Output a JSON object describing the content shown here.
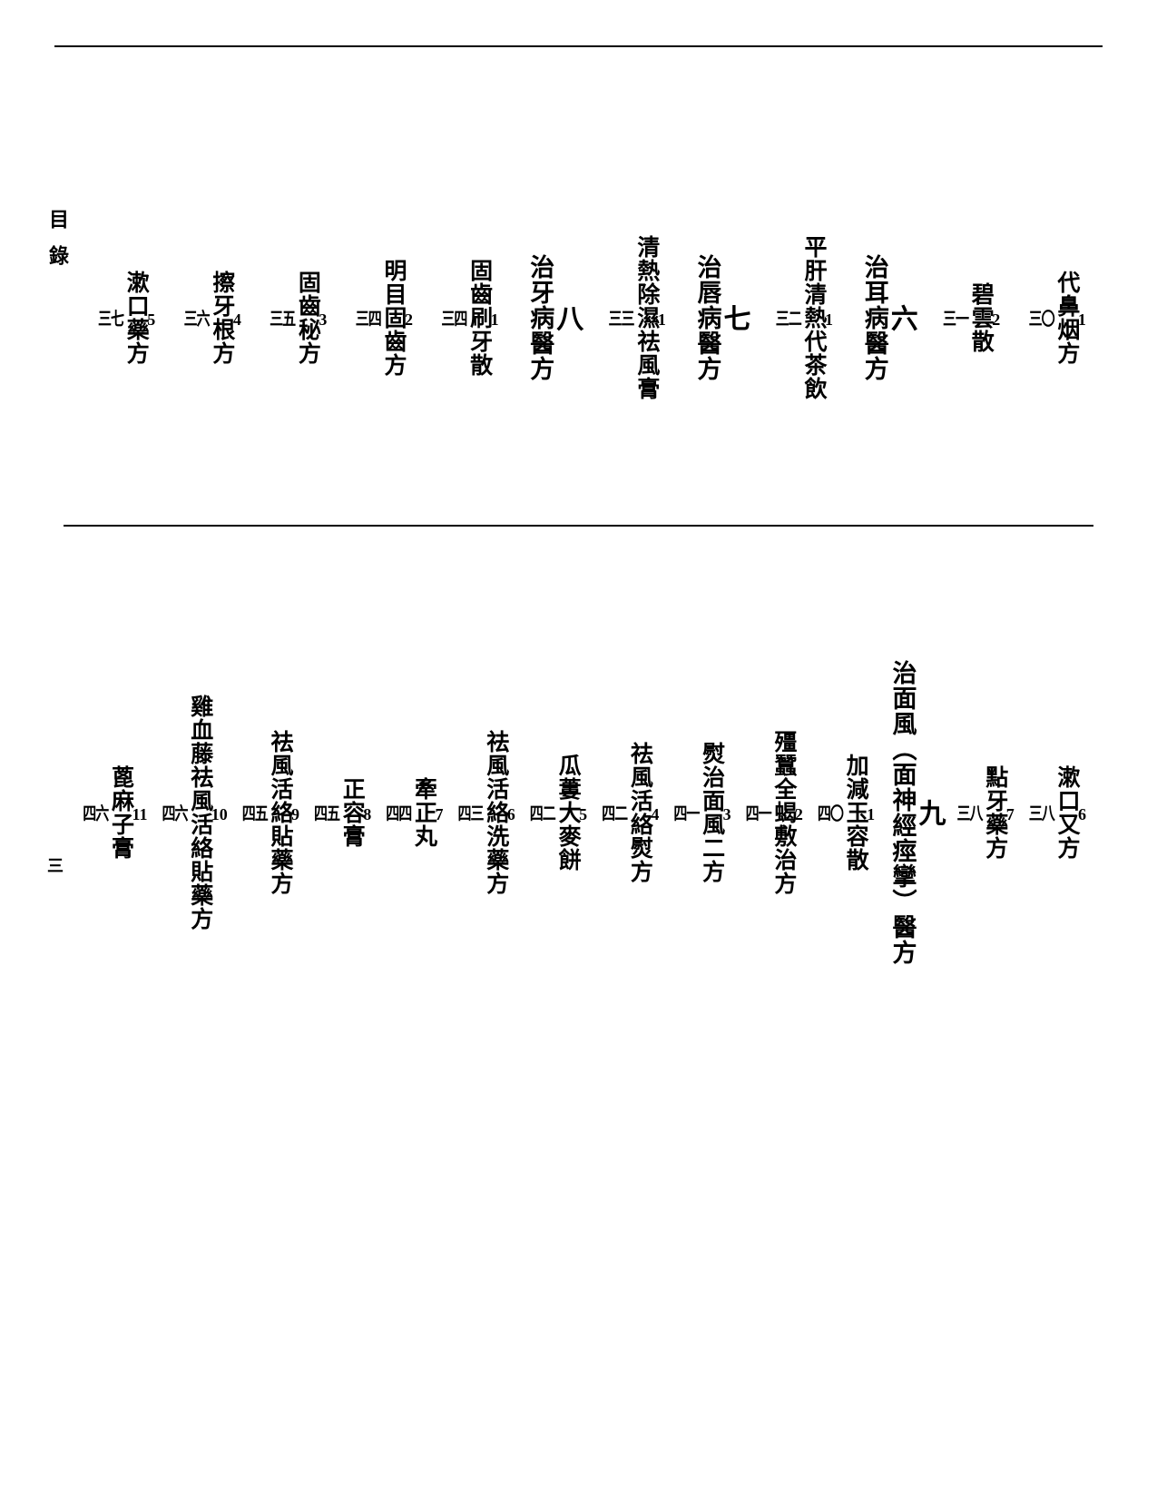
{
  "header_label": "目錄",
  "footer_page": "三",
  "top_row": [
    {
      "type": "entry",
      "num": "1",
      "title": "代鼻烟方",
      "page": "三〇"
    },
    {
      "type": "entry",
      "num": "2",
      "title": "碧雲散",
      "page": "三一"
    },
    {
      "type": "section",
      "num": "六",
      "title": "治耳病醫方"
    },
    {
      "type": "entry",
      "num": "1",
      "title": "平肝清熱代茶飲",
      "page": "三二"
    },
    {
      "type": "section",
      "num": "七",
      "title": "治唇病醫方"
    },
    {
      "type": "entry",
      "num": "1",
      "title": "清熱除濕祛風膏",
      "page": "三三"
    },
    {
      "type": "section",
      "num": "八",
      "title": "治牙病醫方"
    },
    {
      "type": "entry",
      "num": "1",
      "title": "固齒刷牙散",
      "page": "三四"
    },
    {
      "type": "entry",
      "num": "2",
      "title": "明目固齒方",
      "page": "三四"
    },
    {
      "type": "entry",
      "num": "3",
      "title": "固齒秘方",
      "page": "三五"
    },
    {
      "type": "entry",
      "num": "4",
      "title": "擦牙根方",
      "page": "三六"
    },
    {
      "type": "entry",
      "num": "5",
      "title": "漱口藥方",
      "page": "三七"
    }
  ],
  "bottom_row": [
    {
      "type": "entry",
      "num": "6",
      "title": "漱口又方",
      "page": "三八"
    },
    {
      "type": "entry",
      "num": "7",
      "title": "點牙藥方",
      "page": "三八"
    },
    {
      "type": "section",
      "num": "九",
      "title": "治面風︵面神經痙攣︶醫方"
    },
    {
      "type": "entry",
      "num": "1",
      "title": "加減玉容散",
      "page": "四〇"
    },
    {
      "type": "entry",
      "num": "2",
      "title": "殭蠶全蝎敷治方",
      "page": "四一"
    },
    {
      "type": "entry",
      "num": "3",
      "title": "熨治面風二方",
      "page": "四一"
    },
    {
      "type": "entry",
      "num": "4",
      "title": "祛風活絡熨方",
      "page": "四二"
    },
    {
      "type": "entry",
      "num": "5",
      "title": "瓜蔞大麥餅",
      "page": "四二"
    },
    {
      "type": "entry",
      "num": "6",
      "title": "祛風活絡洗藥方",
      "page": "四三"
    },
    {
      "type": "entry",
      "num": "7",
      "title": "牽正丸",
      "page": "四四"
    },
    {
      "type": "entry",
      "num": "8",
      "title": "正容膏",
      "page": "四五"
    },
    {
      "type": "entry",
      "num": "9",
      "title": "祛風活絡貼藥方",
      "page": "四五"
    },
    {
      "type": "entry",
      "num": "10",
      "title": "雞血藤祛風活絡貼藥方",
      "page": "四六"
    },
    {
      "type": "entry",
      "num": "11",
      "title": "蓖麻子膏",
      "page": "四六"
    }
  ]
}
